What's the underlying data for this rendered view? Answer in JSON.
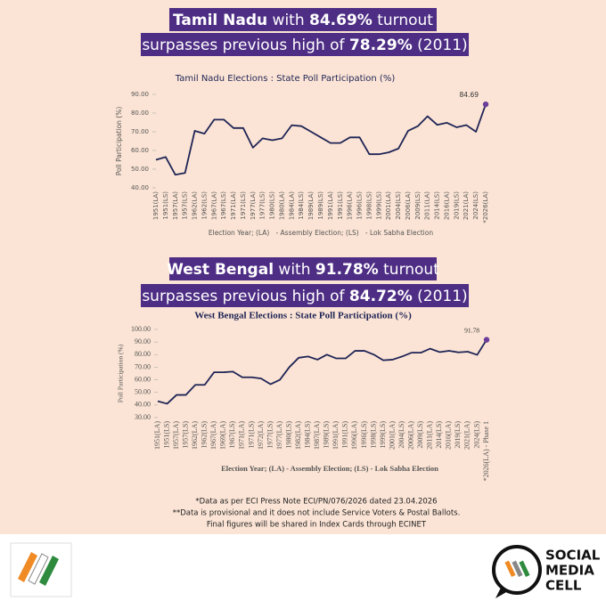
{
  "headlines": [
    [
      [
        {
          "text": "Tamil Nadu",
          "bold": true
        },
        {
          "text": " with ",
          "bold": false
        },
        {
          "text": "84.69%",
          "bold": true
        },
        {
          "text": " turnout",
          "bold": false
        }
      ],
      [
        {
          "text": "surpasses previous high of ",
          "bold": false
        },
        {
          "text": "78.29%",
          "bold": true
        },
        {
          "text": " (2011)",
          "bold": false
        }
      ]
    ],
    [
      [
        {
          "text": "West Bengal",
          "bold": true
        },
        {
          "text": " with ",
          "bold": false
        },
        {
          "text": "91.78%",
          "bold": true
        },
        {
          "text": " turnout",
          "bold": false
        }
      ],
      [
        {
          "text": "surpasses previous high of ",
          "bold": false
        },
        {
          "text": "84.72%",
          "bold": true
        },
        {
          "text": " (2011)",
          "bold": false
        }
      ]
    ]
  ],
  "chart_data": [
    {
      "type": "line",
      "title": "Tamil Nadu Elections : State Poll Participation (%)",
      "y_label": "Poll Participation (%)",
      "x_label": "Election Year; (LA)   - Assembly Election; (LS)   - Lok Sabha Election",
      "categories": [
        "1951(LA)",
        "1951(LS)",
        "1957(LA)",
        "1957(LS)",
        "1962(LA)",
        "1962(LS)",
        "1967(LA)",
        "1967(LS)",
        "1971(LA)",
        "1971(LS)",
        "1977(LA)",
        "1977(LS)",
        "1980(LS)",
        "1980(LA)",
        "1984(LA)",
        "1984(LS)",
        "1989(LA)",
        "1989(LS)",
        "1991(LA)",
        "1991(LS)",
        "1996(LA)",
        "1996(LS)",
        "1998(LS)",
        "1999(LS)",
        "2001(LA)",
        "2004(LS)",
        "2006(LA)",
        "2009(LS)",
        "2011(LA)",
        "2014(LS)",
        "2016(LA)",
        "2019(LS)",
        "2021(LA)",
        "2024(LS)",
        "*2026(LA)"
      ],
      "values": [
        55,
        56.5,
        47,
        48,
        70.5,
        69,
        76.5,
        76.5,
        72,
        72,
        61.5,
        66.5,
        65.5,
        66.5,
        73.5,
        73,
        70,
        67,
        64,
        64,
        67,
        67,
        58,
        58,
        59,
        61,
        70.5,
        73,
        78.29,
        73.7,
        74.8,
        72.4,
        73.6,
        70,
        84.69
      ],
      "color": "#1f2456",
      "marker_color": "#6a3d9a",
      "ylim": [
        40,
        90
      ],
      "yticks": [
        {
          "value": 40,
          "label": "40.00"
        },
        {
          "value": 50,
          "label": "50.00"
        },
        {
          "value": 60,
          "label": "60.00"
        },
        {
          "value": 70,
          "label": "70.00"
        },
        {
          "value": 80,
          "label": "80.00"
        },
        {
          "value": 90,
          "label": "90.00"
        }
      ]
    },
    {
      "type": "line",
      "title": "West Bengal Elections : State Poll Participation (%)",
      "y_label": "Poll Participation (%)",
      "x_label": "Election Year; (LA) - Assembly Election; (LS) - Lok Sabha Election",
      "categories": [
        "1951(LA)",
        "1951(LS)",
        "1957(LA)",
        "1957(LS)",
        "1962(LA)",
        "1962(LS)",
        "1967(LA)",
        "1969(LA)",
        "1967(LS)",
        "1971(LA)",
        "1971(LS)",
        "1972(LA)",
        "1977(LS)",
        "1977(LA)",
        "1980(LS)",
        "1982(LA)",
        "1984(LS)",
        "1987(LA)",
        "1989(LS)",
        "1991(LA)",
        "1991(LS)",
        "1996(LA)",
        "1996(LS)",
        "1998(LS)",
        "1999(LS)",
        "2001(LA)",
        "2004(LS)",
        "2006(LA)",
        "2009(LS)",
        "2011(LA)",
        "2014(LS)",
        "2016(LA)",
        "2019(LS)",
        "2021(LA)",
        "2024(LS)",
        "*2026(LA) - Phase 1"
      ],
      "values": [
        43,
        41,
        48,
        48,
        56,
        56,
        66,
        66,
        66.5,
        62,
        62,
        61,
        56.5,
        60,
        70,
        77.5,
        78.5,
        76,
        80,
        77,
        77,
        83,
        83,
        80,
        75.5,
        76,
        78.5,
        81.5,
        81.5,
        84.72,
        82,
        83,
        81.8,
        82.3,
        79.8,
        91.78
      ],
      "color": "#1f2456",
      "marker_color": "#6a3d9a",
      "ylim": [
        30,
        100
      ],
      "yticks": [
        {
          "value": 30,
          "label": "30.00"
        },
        {
          "value": 40,
          "label": "40.00"
        },
        {
          "value": 50,
          "label": "50.00"
        },
        {
          "value": 60,
          "label": "60.00"
        },
        {
          "value": 70,
          "label": "70.00"
        },
        {
          "value": 80,
          "label": "80.00"
        },
        {
          "value": 90,
          "label": "90.00"
        },
        {
          "value": 100,
          "label": "100.00"
        }
      ]
    }
  ],
  "footnotes": [
    "*Data as per ECI Press Note ECI/PN/076/2026 dated 23.04.2026",
    "**Data is provisional and it does not include Service Voters & Postal Ballots.",
    "Final figures will be shared in Index Cards through ECINET"
  ],
  "logo_text": [
    "SOCIAL",
    "MEDIA",
    "CELL"
  ]
}
